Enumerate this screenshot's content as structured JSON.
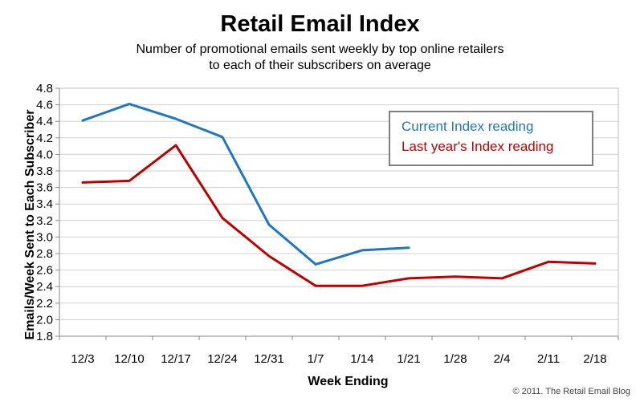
{
  "chart_data": {
    "type": "line",
    "title": "Retail Email Index",
    "subtitle_lines": [
      "Number of promotional emails sent weekly by top online retailers",
      "to each of their subscribers on average"
    ],
    "xlabel": "Week Ending",
    "ylabel": "Emails/Week Sent to Each Subscriber",
    "categories": [
      "12/3",
      "12/10",
      "12/17",
      "12/24",
      "12/31",
      "1/7",
      "1/14",
      "1/21",
      "1/28",
      "2/4",
      "2/11",
      "2/18"
    ],
    "ylim": [
      1.8,
      4.8
    ],
    "yticks": [
      "1.8",
      "2.0",
      "2.2",
      "2.4",
      "2.6",
      "2.8",
      "3.0",
      "3.2",
      "3.4",
      "3.6",
      "3.8",
      "4.0",
      "4.2",
      "4.4",
      "4.6",
      "4.8"
    ],
    "grid": true,
    "legend_position": "top-right",
    "series": [
      {
        "name": "Current Index reading",
        "color": "#1f77c0",
        "values": [
          4.41,
          4.61,
          4.43,
          4.21,
          3.15,
          2.67,
          2.84,
          2.87,
          null,
          null,
          null,
          null
        ]
      },
      {
        "name": "Last year's Index reading",
        "color": "#c00000",
        "values": [
          3.66,
          3.68,
          4.11,
          3.23,
          2.77,
          2.41,
          2.41,
          2.5,
          2.52,
          2.5,
          2.7,
          2.68
        ]
      }
    ]
  },
  "copyright": "© 2011. The Retail Email Blog"
}
